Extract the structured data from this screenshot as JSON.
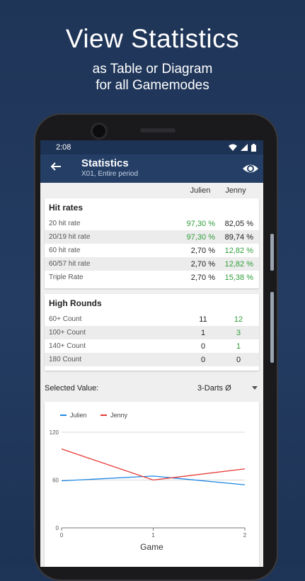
{
  "promo": {
    "title": "View Statistics",
    "subtitle_line1": "as Table or Diagram",
    "subtitle_line2": "for all Gamemodes"
  },
  "status_bar": {
    "time": "2:08",
    "icons": [
      "wifi-icon",
      "signal-icon",
      "battery-icon"
    ]
  },
  "app_bar": {
    "title": "Statistics",
    "subtitle": "X01, Entire period",
    "back_icon": "arrow-left-icon",
    "action_icon": "eye-icon"
  },
  "players": [
    "Julien",
    "Jenny"
  ],
  "hit_rates": {
    "title": "Hit rates",
    "rows": [
      {
        "label": "20 hit rate",
        "julien": "97,30 %",
        "jenny": "82,05 %",
        "winner": "julien"
      },
      {
        "label": "20/19 hit rate",
        "julien": "97,30 %",
        "jenny": "89,74 %",
        "winner": "julien"
      },
      {
        "label": "60 hit rate",
        "julien": "2,70 %",
        "jenny": "12,82 %",
        "winner": "jenny"
      },
      {
        "label": "60/57 hit rate",
        "julien": "2,70 %",
        "jenny": "12,82 %",
        "winner": "jenny"
      },
      {
        "label": "Triple Rate",
        "julien": "2,70 %",
        "jenny": "15,38 %",
        "winner": "jenny"
      }
    ]
  },
  "high_rounds": {
    "title": "High Rounds",
    "rows": [
      {
        "label": "60+ Count",
        "julien": "11",
        "jenny": "12",
        "winner": "jenny"
      },
      {
        "label": "100+ Count",
        "julien": "1",
        "jenny": "3",
        "winner": "jenny"
      },
      {
        "label": "140+ Count",
        "julien": "0",
        "jenny": "1",
        "winner": "jenny"
      },
      {
        "label": "180 Count",
        "julien": "0",
        "jenny": "0",
        "winner": "none"
      }
    ]
  },
  "selector": {
    "label": "Selected Value:",
    "value": "3-Darts Ø"
  },
  "colors": {
    "win": "#2e9d3a",
    "julien_line": "#1e88e5",
    "jenny_line": "#e53935",
    "app_bar": "#243e66"
  },
  "chart_data": {
    "type": "line",
    "x": [
      0,
      1,
      2
    ],
    "xlabel": "Game",
    "xticks": [
      "0",
      "1",
      "2"
    ],
    "yticks": [
      "0",
      "60",
      "120"
    ],
    "ylim": [
      0,
      120
    ],
    "legend_position": "top-left",
    "grid": true,
    "series": [
      {
        "name": "Julien",
        "values": [
          59,
          65,
          54
        ],
        "color": "#1e88e5"
      },
      {
        "name": "Jenny",
        "values": [
          99,
          60,
          74
        ],
        "color": "#e53935"
      }
    ]
  }
}
